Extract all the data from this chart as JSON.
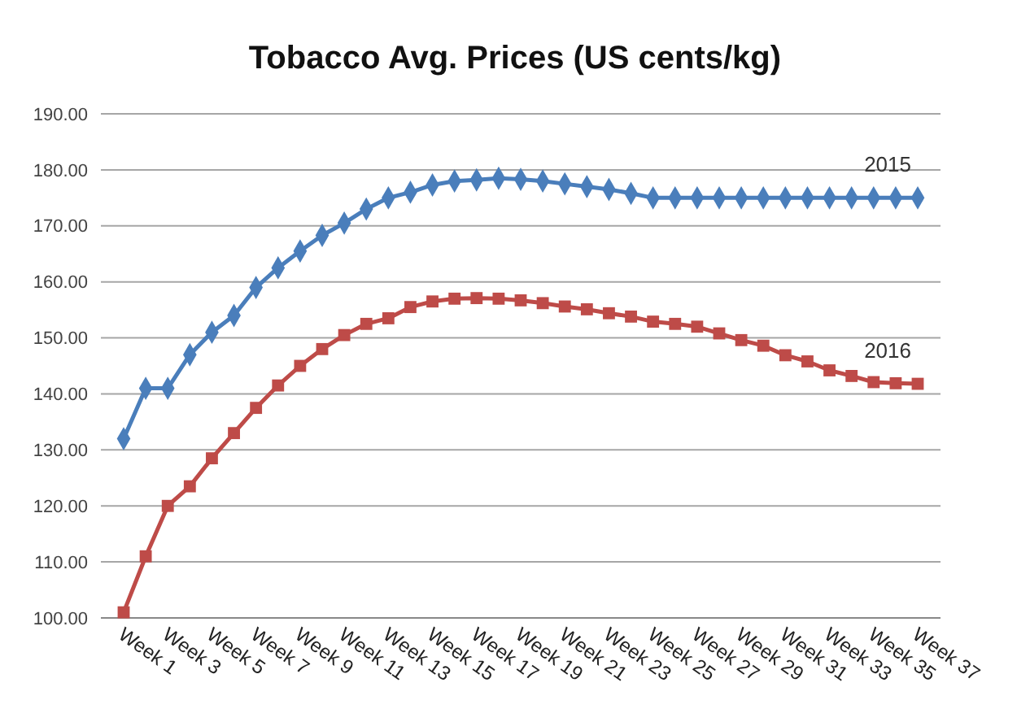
{
  "chart_data": {
    "type": "line",
    "title": "Tobacco Avg. Prices (US cents/kg)",
    "categories": [
      "Week 1",
      null,
      "Week 3",
      null,
      "Week 5",
      null,
      "Week 7",
      null,
      "Week 9",
      null,
      "Week 11",
      null,
      "Week 13",
      null,
      "Week 15",
      null,
      "Week 17",
      null,
      "Week 19",
      null,
      "Week 21",
      null,
      "Week 23",
      null,
      "Week 25",
      null,
      "Week 27",
      null,
      "Week 29",
      null,
      "Week 31",
      null,
      "Week 33",
      null,
      "Week 35",
      null,
      "Week 37"
    ],
    "series": [
      {
        "name": "2015",
        "color": "#4a7ebb",
        "marker": "diamond",
        "values": [
          132,
          141,
          141,
          147,
          151,
          154,
          159,
          162.5,
          165.5,
          168.3,
          170.5,
          173,
          175,
          176,
          177.3,
          178,
          178.2,
          178.5,
          178.3,
          178,
          177.5,
          177,
          176.5,
          175.8,
          175,
          175,
          175,
          175,
          175,
          175,
          175,
          175,
          175,
          175,
          175,
          175,
          175
        ]
      },
      {
        "name": "2016",
        "color": "#be4b48",
        "marker": "square",
        "values": [
          101,
          111,
          120,
          123.5,
          128.5,
          133,
          137.5,
          141.5,
          145,
          148,
          150.5,
          152.5,
          153.5,
          155.5,
          156.5,
          157,
          157.1,
          157,
          156.7,
          156.2,
          155.6,
          155.1,
          154.4,
          153.8,
          152.9,
          152.5,
          152,
          150.8,
          149.6,
          148.6,
          146.9,
          145.8,
          144.2,
          143.2,
          142.1,
          141.9,
          141.8
        ]
      }
    ],
    "ylim": [
      100,
      190
    ],
    "yticks": [
      {
        "value": 100,
        "label": "100.00"
      },
      {
        "value": 110,
        "label": "110.00"
      },
      {
        "value": 120,
        "label": "120.00"
      },
      {
        "value": 130,
        "label": "130.00"
      },
      {
        "value": 140,
        "label": "140.00"
      },
      {
        "value": 150,
        "label": "150.00"
      },
      {
        "value": 160,
        "label": "160.00"
      },
      {
        "value": 170,
        "label": "170.00"
      },
      {
        "value": 180,
        "label": "180.00"
      },
      {
        "value": 190,
        "label": "190.00"
      }
    ],
    "grid": "y",
    "line_style": "solid"
  }
}
